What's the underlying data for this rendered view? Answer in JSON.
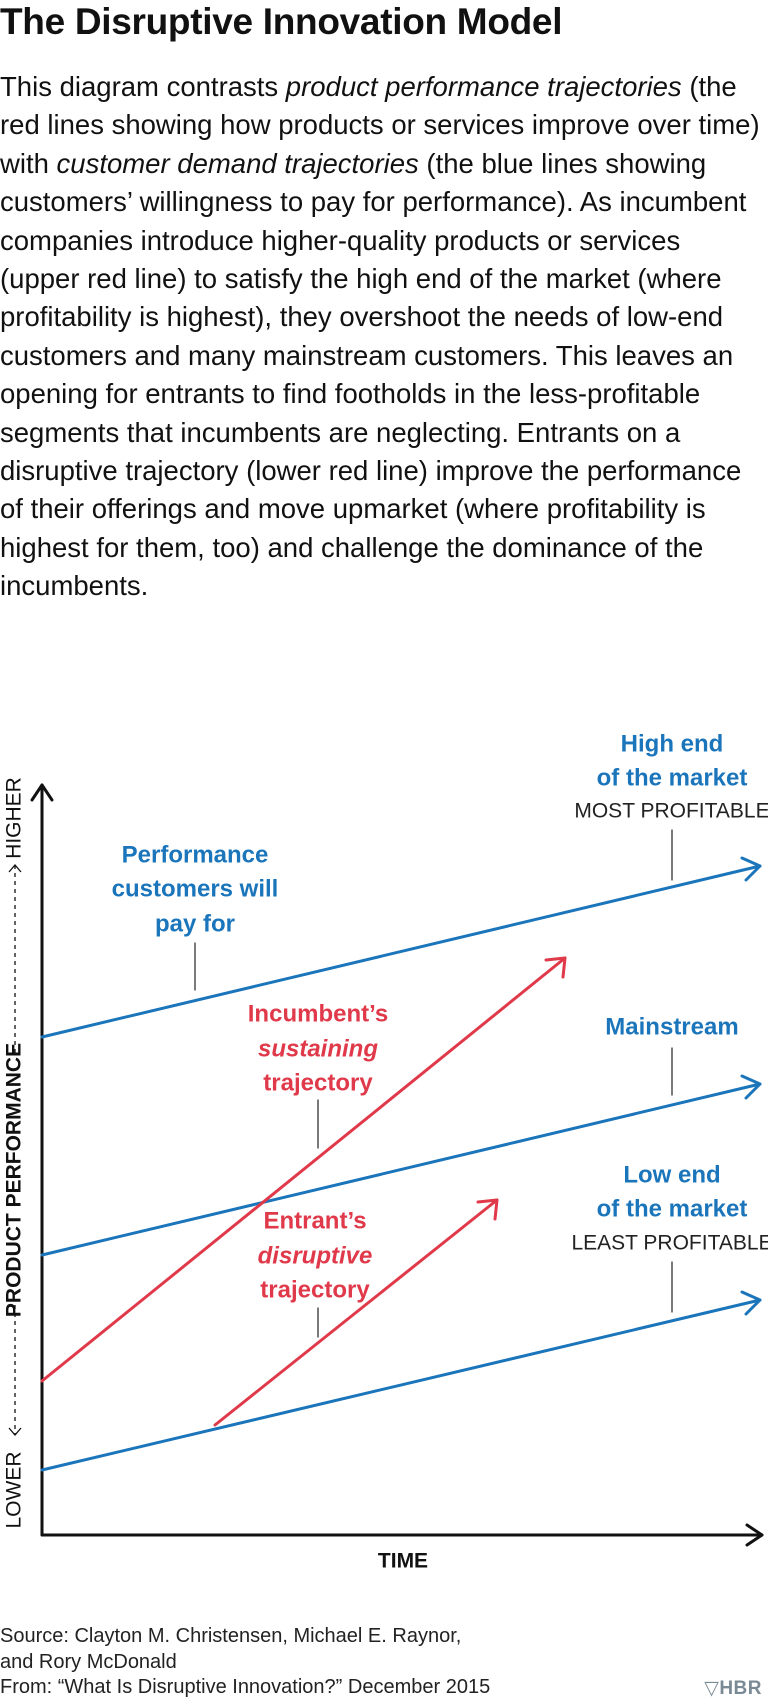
{
  "title": "The Disruptive Innovation Model",
  "intro": [
    "This diagram contrasts ",
    "product performance trajectories",
    " (the red lines showing how products or services improve over time) with ",
    "customer demand trajectories",
    " (the blue lines showing customers’ willingness to pay for performance). As incumbent companies introduce higher-quality products or services (upper red line) to satisfy the high end of the market (where profitability is highest), they overshoot the needs of low-end customers and many mainstream customers. This leaves an opening for entrants to find footholds in the less-profitable segments that incumbents are neglecting. Entrants on a disruptive trajectory (lower red line) improve the performance of their offerings and move upmarket (where profitability is highest for them, too) and challenge the dominance of the incumbents."
  ],
  "diagram": {
    "high_end": {
      "lines": [
        "High end",
        "of the market"
      ],
      "note": "MOST PROFITABLE"
    },
    "performance": {
      "lines": [
        "Performance",
        "customers will",
        "pay for"
      ]
    },
    "mainstream": {
      "lines": [
        "Mainstream"
      ]
    },
    "low_end": {
      "lines": [
        "Low end",
        "of the market"
      ],
      "note": "LEAST PROFITABLE"
    },
    "incumbent": {
      "lines": [
        "Incumbent’s",
        "sustaining",
        "trajectory"
      ]
    },
    "entrant": {
      "lines": [
        "Entrant’s",
        "disruptive",
        "trajectory"
      ]
    },
    "y_axis": {
      "higher": "HIGHER",
      "title": "PRODUCT PERFORMANCE",
      "lower": "LOWER"
    },
    "x_axis": "TIME"
  },
  "source": [
    "Source: Clayton M. Christensen, Michael E. Raynor,",
    "and Rory McDonald",
    "From: “What Is Disruptive Innovation?” December 2015"
  ],
  "logo": "HBR"
}
